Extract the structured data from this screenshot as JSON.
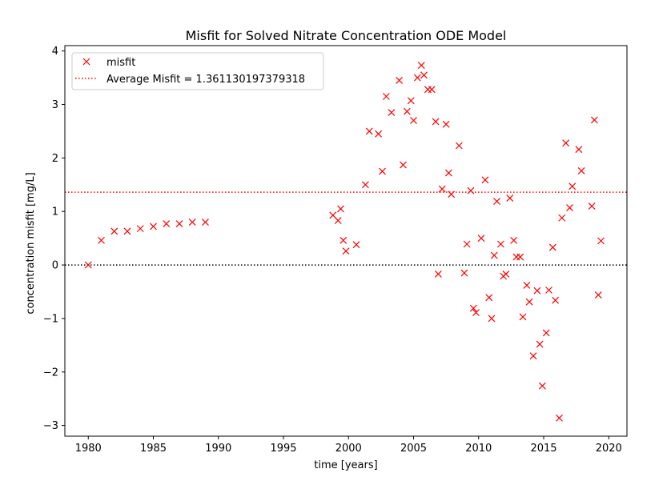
{
  "chart_data": {
    "type": "scatter",
    "title": "Misfit for Solved Nitrate Concentration ODE Model",
    "xlabel": "time [years]",
    "ylabel": "concentration misfit [mg/L]",
    "xlim": [
      1978.2,
      2021.4
    ],
    "ylim": [
      -3.2,
      4.1
    ],
    "xticks": [
      1980,
      1985,
      1990,
      1995,
      2000,
      2005,
      2010,
      2015,
      2020
    ],
    "yticks": [
      -3,
      -2,
      -1,
      0,
      1,
      2,
      3,
      4
    ],
    "xtick_labels": [
      "1980",
      "1985",
      "1990",
      "1995",
      "2000",
      "2005",
      "2010",
      "2015",
      "2020"
    ],
    "ytick_labels": [
      "−3",
      "−2",
      "−1",
      "0",
      "1",
      "2",
      "3",
      "4"
    ],
    "grid": false,
    "legend_position": "top-left",
    "series": [
      {
        "name": "misfit",
        "marker": "x",
        "color": "#ff0000",
        "points": [
          [
            1980.0,
            0.0
          ],
          [
            1981.0,
            0.46
          ],
          [
            1982.0,
            0.63
          ],
          [
            1983.0,
            0.63
          ],
          [
            1984.0,
            0.68
          ],
          [
            1985.0,
            0.72
          ],
          [
            1986.0,
            0.77
          ],
          [
            1987.0,
            0.77
          ],
          [
            1988.0,
            0.8
          ],
          [
            1989.0,
            0.8
          ],
          [
            1998.8,
            0.93
          ],
          [
            1999.2,
            0.83
          ],
          [
            1999.4,
            1.05
          ],
          [
            1999.6,
            0.46
          ],
          [
            1999.8,
            0.26
          ],
          [
            2000.6,
            0.38
          ],
          [
            2001.3,
            1.5
          ],
          [
            2001.6,
            2.5
          ],
          [
            2002.3,
            2.45
          ],
          [
            2002.6,
            1.75
          ],
          [
            2002.9,
            3.15
          ],
          [
            2003.3,
            2.85
          ],
          [
            2003.9,
            3.45
          ],
          [
            2004.2,
            1.87
          ],
          [
            2004.5,
            2.87
          ],
          [
            2004.8,
            3.07
          ],
          [
            2005.0,
            2.7
          ],
          [
            2005.3,
            3.5
          ],
          [
            2005.6,
            3.73
          ],
          [
            2005.8,
            3.55
          ],
          [
            2006.1,
            3.28
          ],
          [
            2006.4,
            3.28
          ],
          [
            2006.7,
            2.68
          ],
          [
            2006.9,
            -0.17
          ],
          [
            2007.2,
            1.42
          ],
          [
            2007.5,
            2.63
          ],
          [
            2007.7,
            1.72
          ],
          [
            2007.9,
            1.32
          ],
          [
            2008.5,
            2.23
          ],
          [
            2008.9,
            -0.15
          ],
          [
            2009.1,
            0.39
          ],
          [
            2009.4,
            1.39
          ],
          [
            2009.6,
            -0.81
          ],
          [
            2009.8,
            -0.89
          ],
          [
            2010.2,
            0.5
          ],
          [
            2010.5,
            1.59
          ],
          [
            2010.8,
            -0.61
          ],
          [
            2011.0,
            -1.0
          ],
          [
            2011.2,
            0.18
          ],
          [
            2011.4,
            1.19
          ],
          [
            2011.7,
            0.39
          ],
          [
            2011.9,
            -0.21
          ],
          [
            2012.1,
            -0.17
          ],
          [
            2012.4,
            1.25
          ],
          [
            2012.7,
            0.46
          ],
          [
            2012.9,
            0.15
          ],
          [
            2013.2,
            0.15
          ],
          [
            2013.4,
            -0.97
          ],
          [
            2013.7,
            -0.38
          ],
          [
            2013.9,
            -0.69
          ],
          [
            2014.2,
            -1.7
          ],
          [
            2014.5,
            -0.48
          ],
          [
            2014.7,
            -1.48
          ],
          [
            2014.9,
            -2.26
          ],
          [
            2015.2,
            -1.27
          ],
          [
            2015.4,
            -0.47
          ],
          [
            2015.7,
            0.33
          ],
          [
            2015.9,
            -0.66
          ],
          [
            2016.2,
            -2.86
          ],
          [
            2016.4,
            0.88
          ],
          [
            2016.7,
            2.28
          ],
          [
            2017.0,
            1.07
          ],
          [
            2017.2,
            1.47
          ],
          [
            2017.7,
            2.16
          ],
          [
            2017.9,
            1.76
          ],
          [
            2018.7,
            1.1
          ],
          [
            2018.9,
            2.71
          ],
          [
            2019.2,
            -0.56
          ],
          [
            2019.4,
            0.45
          ]
        ]
      },
      {
        "name": "Average Misfit = 1.361130197379318",
        "type": "hline",
        "linestyle": "dotted",
        "color": "#ff0000",
        "y": 1.361130197379318
      }
    ],
    "reference_line": {
      "type": "hline",
      "linestyle": "dotted",
      "color": "#000000",
      "y": 0
    }
  }
}
